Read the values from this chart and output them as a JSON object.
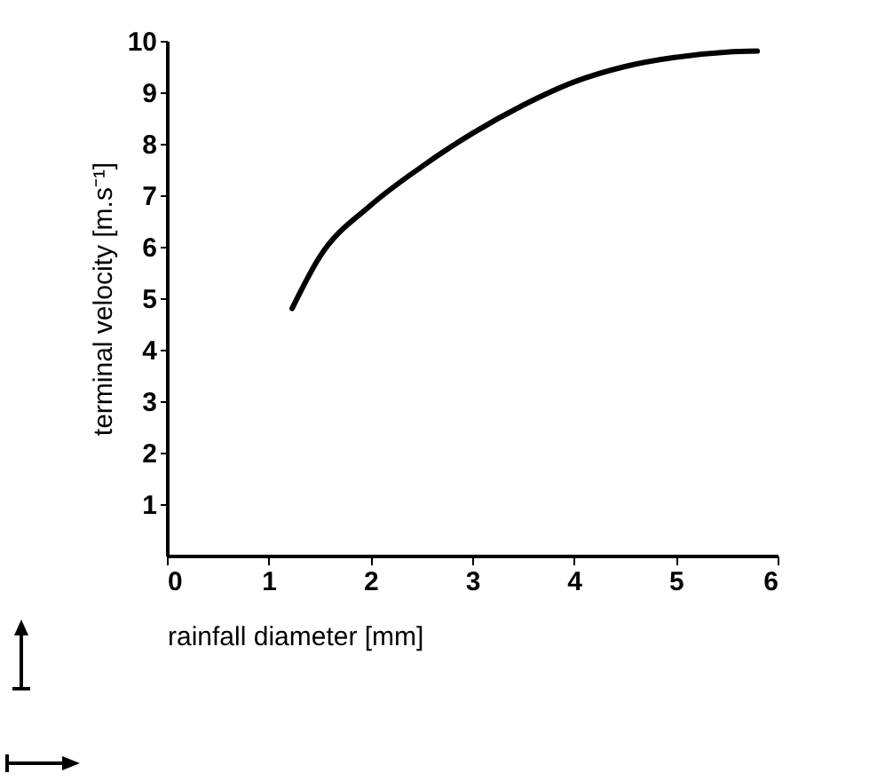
{
  "chart_data": {
    "type": "line",
    "xlabel": "rainfall diameter [mm]",
    "ylabel": "terminal velocity [m.s⁻¹]",
    "x": [
      1.23,
      1.5,
      2,
      2.5,
      3,
      3.5,
      4,
      4.5,
      5,
      5.5,
      5.8
    ],
    "series": [
      {
        "color": "#000000",
        "values": [
          4.8,
          5.8,
          6.8,
          7.55,
          8.2,
          8.75,
          9.2,
          9.5,
          9.68,
          9.78,
          9.8
        ]
      }
    ],
    "xlim": [
      0,
      6
    ],
    "xticks": [
      0,
      1,
      2,
      3,
      4,
      5,
      6
    ],
    "ylim": [
      0,
      10
    ],
    "yticks": [
      1,
      2,
      3,
      4,
      5,
      6,
      7,
      8,
      9,
      10
    ],
    "grid": false,
    "marker": "none",
    "line_style": "solid"
  }
}
